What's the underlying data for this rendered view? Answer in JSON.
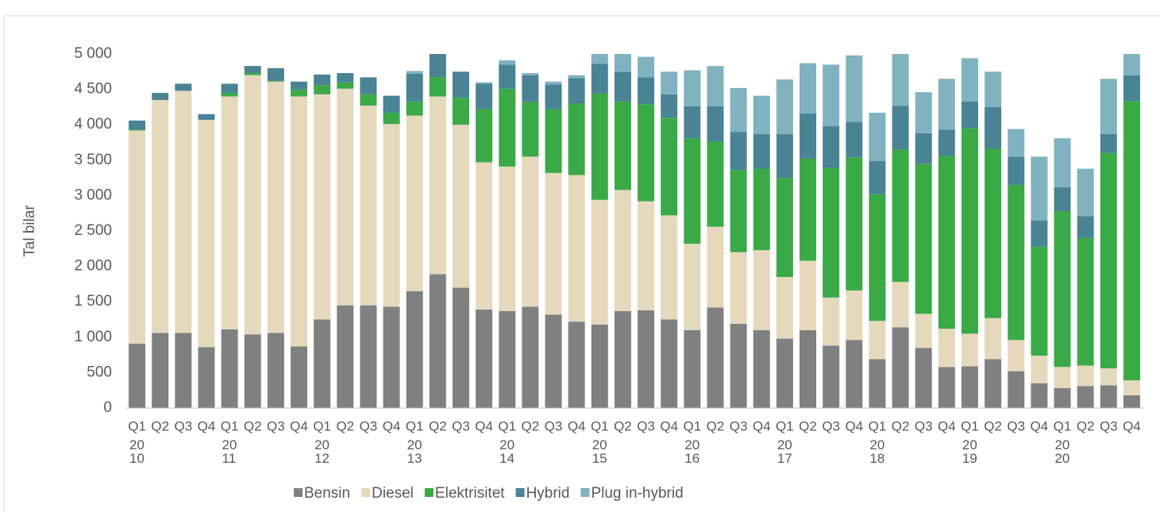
{
  "chart_data": {
    "type": "stacked_bar",
    "y_label": "Tal bilar",
    "categories": [
      "Q1",
      "Q2",
      "Q3",
      "Q4",
      "Q1",
      "Q2",
      "Q3",
      "Q4",
      "Q1",
      "Q2",
      "Q3",
      "Q4",
      "Q1",
      "Q2",
      "Q3",
      "Q4",
      "Q1",
      "Q2",
      "Q3",
      "Q4",
      "Q1",
      "Q2",
      "Q3",
      "Q4",
      "Q1",
      "Q2",
      "Q3",
      "Q4",
      "Q1",
      "Q2",
      "Q3",
      "Q4",
      "Q1",
      "Q2",
      "Q3",
      "Q4",
      "Q1",
      "Q2",
      "Q3",
      "Q4",
      "Q1",
      "Q2",
      "Q3",
      "Q4"
    ],
    "years": [
      "2010",
      "2011",
      "2012",
      "2013",
      "2014",
      "2015",
      "2016",
      "2017",
      "2018",
      "2019",
      "2020"
    ],
    "ylim": [
      0,
      5000
    ],
    "yticks": [
      0,
      500,
      {
        "value": 1000,
        "label": "1 000"
      },
      {
        "value": 1500,
        "label": "1 500"
      },
      {
        "value": 2000,
        "label": "2 000"
      },
      {
        "value": 2500,
        "label": "2 500"
      },
      {
        "value": 3000,
        "label": "3 000"
      },
      {
        "value": 3500,
        "label": "3 500"
      },
      {
        "value": 4000,
        "label": "4 000"
      },
      {
        "value": 4500,
        "label": "4 500"
      },
      {
        "value": 5000,
        "label": "5 000"
      }
    ],
    "series": [
      {
        "name": "Bensin",
        "color": "#808080",
        "values": [
          910,
          1060,
          1060,
          860,
          1110,
          1040,
          1060,
          870,
          1250,
          1450,
          1450,
          1430,
          1650,
          1890,
          1700,
          1390,
          1370,
          1430,
          1320,
          1220,
          1180,
          1370,
          1380,
          1250,
          1100,
          1420,
          1190,
          1100,
          980,
          1100,
          880,
          960,
          690,
          1140,
          850,
          580,
          590,
          690,
          520,
          350,
          280,
          310,
          320,
          180
        ]
      },
      {
        "name": "Diesel",
        "color": "#e6d8bd",
        "values": [
          3010,
          3290,
          3420,
          3210,
          3290,
          3660,
          3550,
          3530,
          3180,
          3060,
          2820,
          2580,
          2480,
          2510,
          2300,
          2080,
          2040,
          2120,
          2000,
          2070,
          1760,
          1710,
          1540,
          1470,
          1220,
          1140,
          1010,
          1130,
          870,
          980,
          680,
          700,
          540,
          640,
          480,
          540,
          460,
          580,
          440,
          390,
          300,
          290,
          240,
          210
        ]
      },
      {
        "name": "Elektrisitet",
        "color": "#3aaa47",
        "values": [
          10,
          0,
          0,
          0,
          50,
          30,
          10,
          100,
          130,
          90,
          160,
          160,
          200,
          270,
          380,
          750,
          1100,
          770,
          900,
          1010,
          1500,
          1250,
          1370,
          1380,
          1490,
          1200,
          1160,
          1150,
          1400,
          1440,
          1830,
          1880,
          1790,
          1870,
          2120,
          2440,
          2900,
          2390,
          2190,
          1540,
          2200,
          1800,
          3040,
          3940
        ]
      },
      {
        "name": "Hybrid",
        "color": "#4a8394",
        "values": [
          130,
          100,
          100,
          80,
          130,
          100,
          180,
          110,
          150,
          130,
          240,
          240,
          390,
          330,
          370,
          360,
          340,
          380,
          350,
          360,
          420,
          420,
          380,
          330,
          450,
          500,
          540,
          490,
          620,
          640,
          590,
          500,
          470,
          620,
          430,
          370,
          380,
          590,
          400,
          370,
          340,
          310,
          270,
          370
        ]
      },
      {
        "name": "Plug in-hybrid",
        "color": "#80b2bf",
        "values": [
          0,
          0,
          0,
          0,
          0,
          0,
          0,
          0,
          0,
          0,
          0,
          0,
          40,
          0,
          0,
          20,
          60,
          30,
          40,
          40,
          140,
          250,
          290,
          320,
          510,
          570,
          620,
          540,
          770,
          710,
          870,
          940,
          680,
          730,
          580,
          720,
          610,
          500,
          390,
          900,
          690,
          670,
          780,
          300
        ]
      }
    ]
  }
}
